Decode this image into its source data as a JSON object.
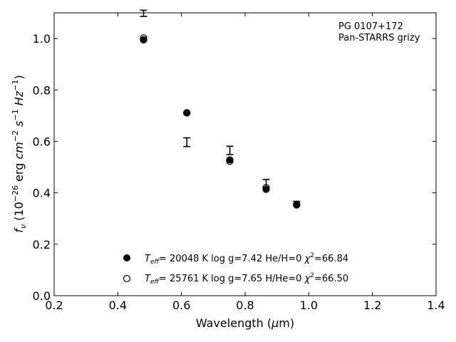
{
  "chart_data": {
    "type": "scatter",
    "object_label": "PG 0107+172",
    "survey_label": "Pan-STARRS grizy",
    "xlabel": {
      "text": "Wavelength (",
      "mu": "μ",
      "tail": "m)"
    },
    "ylabel": {
      "symbol": "f",
      "sub": "ν",
      "pre": " (10",
      "exp1": "−26",
      "mid": " erg ",
      "cm": "cm",
      "exp2": "−2",
      "s": " s",
      "exp3": "−1",
      "hz": " Hz",
      "exp4": "−1",
      "close": ")"
    },
    "xlim": [
      0.2,
      1.4
    ],
    "ylim": [
      0.0,
      1.1
    ],
    "xticks": [
      0.2,
      0.4,
      0.6,
      0.8,
      1.0,
      1.2,
      1.4
    ],
    "xtick_labels": [
      "0.2",
      "0.4",
      "0.6",
      "0.8",
      "1.0",
      "1.2",
      "1.4"
    ],
    "yticks": [
      0.0,
      0.2,
      0.4,
      0.6,
      0.8,
      1.0
    ],
    "ytick_labels": [
      "0.0",
      "0.2",
      "0.4",
      "0.6",
      "0.8",
      "1.0"
    ],
    "observed": [
      {
        "x": 0.481,
        "y": 1.098,
        "err": 0.012
      },
      {
        "x": 0.617,
        "y": 0.597,
        "err": 0.017
      },
      {
        "x": 0.752,
        "y": 0.565,
        "err": 0.016
      },
      {
        "x": 0.866,
        "y": 0.435,
        "err": 0.017
      },
      {
        "x": 0.962,
        "y": 0.359,
        "err": 0.008
      }
    ],
    "series": [
      {
        "marker": "filled",
        "legend": {
          "teff": "T",
          "teff_sub": "eff",
          "body": "= 20048 K  log g=7.42  He/H=0  ",
          "chi": "χ",
          "chi_exp": "2",
          "chi_val": "=66.84"
        },
        "x": [
          0.481,
          0.617,
          0.752,
          0.866,
          0.962
        ],
        "y": [
          0.995,
          0.711,
          0.528,
          0.414,
          0.353
        ]
      },
      {
        "marker": "open",
        "legend": {
          "teff": "T",
          "teff_sub": "eff",
          "body": "= 25761 K  log g=7.65  H/He=0  ",
          "chi": "χ",
          "chi_exp": "2",
          "chi_val": "=66.50"
        },
        "x": [
          0.481,
          0.617,
          0.752,
          0.866,
          0.962
        ],
        "y": [
          1.002,
          0.711,
          0.523,
          0.42,
          0.355
        ]
      }
    ],
    "colors": {
      "axis": "#000000",
      "marker": "#000000",
      "background": "#ffffff"
    }
  }
}
